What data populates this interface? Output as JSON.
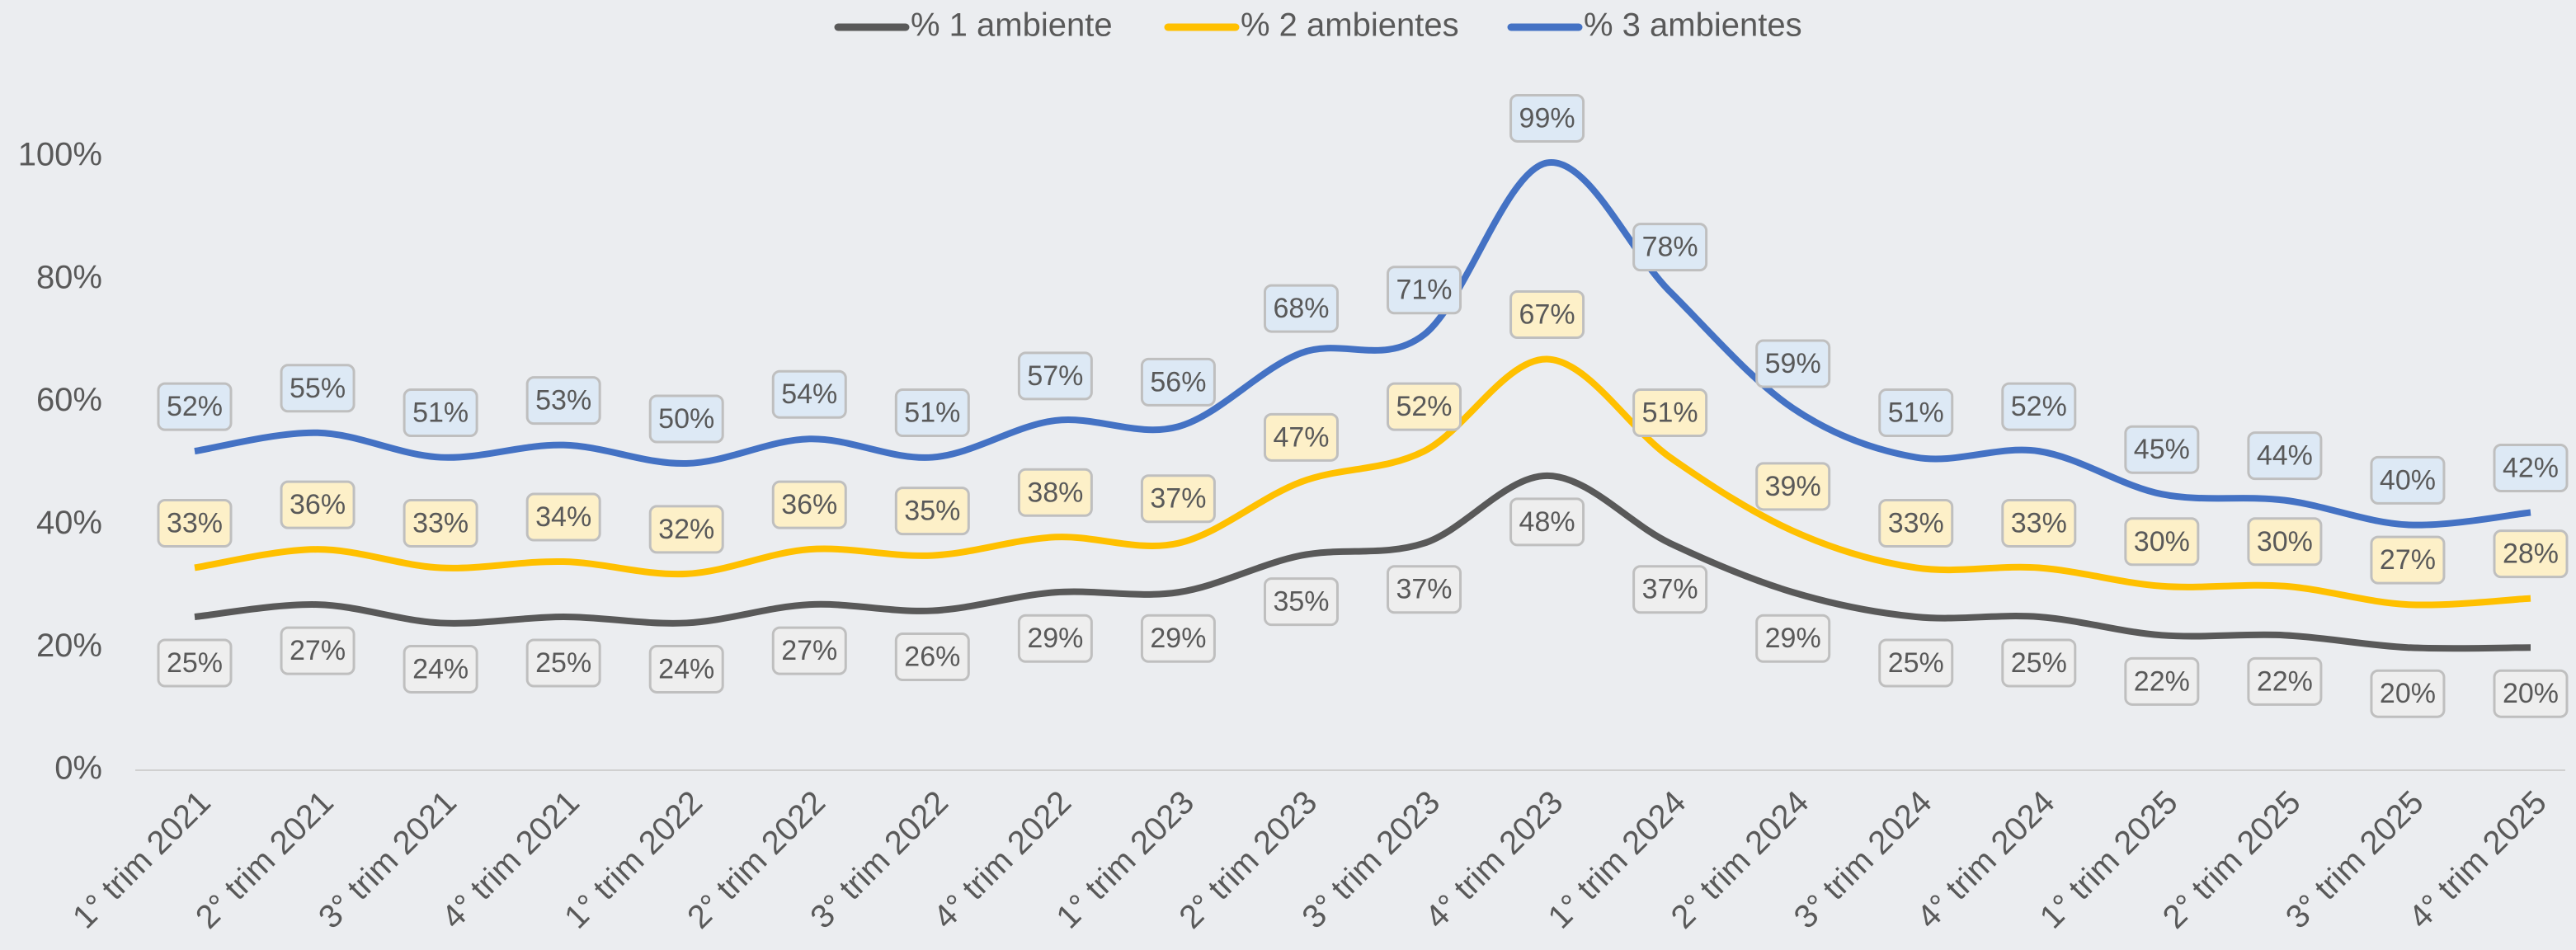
{
  "chart_data": {
    "type": "line",
    "categories": [
      "1° trim 2021",
      "2° trim 2021",
      "3° trim 2021",
      "4° trim 2021",
      "1° trim 2022",
      "2° trim 2022",
      "3° trim 2022",
      "4° trim 2022",
      "1° trim 2023",
      "2° trim 2023",
      "3° trim 2023",
      "4° trim 2023",
      "1° trim 2024",
      "2° trim 2024",
      "3° trim 2024",
      "4° trim 2024",
      "1° trim 2025",
      "2° trim 2025",
      "3° trim 2025",
      "4° trim 2025"
    ],
    "series": [
      {
        "name": "% 1 ambiente",
        "color": "#595959",
        "label_fill": "#eeeeee",
        "label_position": "below",
        "values": [
          25,
          27,
          24,
          25,
          24,
          27,
          26,
          29,
          29,
          35,
          37,
          48,
          37,
          29,
          25,
          25,
          22,
          22,
          20,
          20
        ],
        "value_labels": [
          "25%",
          "27%",
          "24%",
          "25%",
          "24%",
          "27%",
          "26%",
          "29%",
          "29%",
          "35%",
          "37%",
          "48%",
          "37%",
          "29%",
          "25%",
          "25%",
          "22%",
          "22%",
          "20%",
          "20%"
        ]
      },
      {
        "name": "% 2 ambientes",
        "color": "#ffc000",
        "label_fill": "#fdf0c8",
        "label_position": "above",
        "values": [
          33,
          36,
          33,
          34,
          32,
          36,
          35,
          38,
          37,
          47,
          52,
          67,
          51,
          39,
          33,
          33,
          30,
          30,
          27,
          28
        ],
        "value_labels": [
          "33%",
          "36%",
          "33%",
          "34%",
          "32%",
          "36%",
          "35%",
          "38%",
          "37%",
          "47%",
          "52%",
          "67%",
          "51%",
          "39%",
          "33%",
          "33%",
          "30%",
          "30%",
          "27%",
          "28%"
        ]
      },
      {
        "name": "% 3 ambientes",
        "color": "#4472c4",
        "label_fill": "#dde9f5",
        "label_position": "above",
        "values": [
          52,
          55,
          51,
          53,
          50,
          54,
          51,
          57,
          56,
          68,
          71,
          99,
          78,
          59,
          51,
          52,
          45,
          44,
          40,
          42
        ],
        "value_labels": [
          "52%",
          "55%",
          "51%",
          "53%",
          "50%",
          "54%",
          "51%",
          "57%",
          "56%",
          "68%",
          "71%",
          "99%",
          "78%",
          "59%",
          "51%",
          "52%",
          "45%",
          "44%",
          "40%",
          "42%"
        ]
      }
    ],
    "ylim": [
      0,
      110
    ],
    "yticks": [
      {
        "value": 0,
        "label": "0%"
      },
      {
        "value": 20,
        "label": "20%"
      },
      {
        "value": 40,
        "label": "40%"
      },
      {
        "value": 60,
        "label": "60%"
      },
      {
        "value": 80,
        "label": "80%"
      },
      {
        "value": 100,
        "label": "100%"
      }
    ],
    "legend": "top",
    "smooth": true,
    "grid": false
  }
}
